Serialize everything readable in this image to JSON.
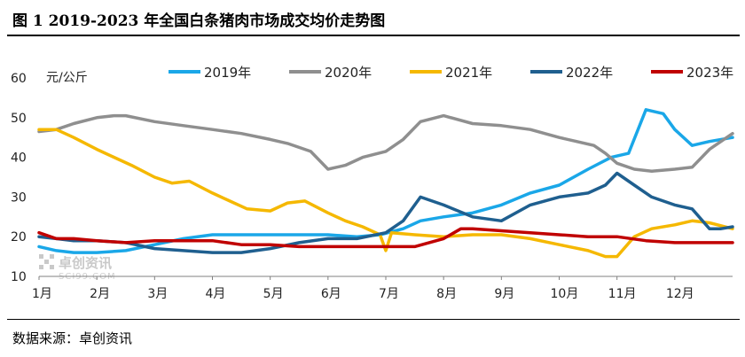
{
  "figure": {
    "title": "图 1 2019-2023 年全国白条猪肉市场成交均价走势图",
    "source": "数据来源：卓创资讯",
    "watermark": {
      "name": "卓创资讯",
      "url": "SCI99.COM"
    }
  },
  "chart_data": {
    "type": "line",
    "title": "",
    "xlabel": "",
    "ylabel": "元/公斤",
    "ylim": [
      10,
      60
    ],
    "yticks": [
      10,
      20,
      30,
      40,
      50,
      60
    ],
    "xlim": [
      0,
      12
    ],
    "categories": [
      "1月",
      "2月",
      "3月",
      "4月",
      "5月",
      "6月",
      "7月",
      "8月",
      "9月",
      "10月",
      "11月",
      "12月"
    ],
    "grid": false,
    "legend_position": "top",
    "series": [
      {
        "name": "2019年",
        "color": "#1aa7e8",
        "x": [
          0,
          0.3,
          0.6,
          1.0,
          1.5,
          2.0,
          2.5,
          3.0,
          3.5,
          4.0,
          4.5,
          5.0,
          5.5,
          5.9,
          6.3,
          6.6,
          7.0,
          7.5,
          8.0,
          8.5,
          9.0,
          9.5,
          9.9,
          10.2,
          10.5,
          10.8,
          11.0,
          11.3,
          11.6,
          12.0
        ],
        "y": [
          17.5,
          16.5,
          16,
          16,
          16.5,
          18,
          19.5,
          20.5,
          20.5,
          20.5,
          20.5,
          20.5,
          20,
          20.5,
          22,
          24,
          25,
          26,
          28,
          31,
          33,
          37,
          40,
          41,
          52,
          51,
          47,
          43,
          44,
          45
        ]
      },
      {
        "name": "2020年",
        "color": "#8f8f8f",
        "x": [
          0,
          0.3,
          0.6,
          1.0,
          1.3,
          1.5,
          2.0,
          2.5,
          3.0,
          3.5,
          4.0,
          4.3,
          4.7,
          5.0,
          5.3,
          5.6,
          6.0,
          6.3,
          6.6,
          7.0,
          7.5,
          8.0,
          8.5,
          9.0,
          9.3,
          9.6,
          9.8,
          10.0,
          10.3,
          10.6,
          11.0,
          11.3,
          11.6,
          12.0
        ],
        "y": [
          46.5,
          47,
          48.5,
          50,
          50.5,
          50.5,
          49,
          48,
          47,
          46,
          44.5,
          43.5,
          41.5,
          37,
          38,
          40,
          41.5,
          44.5,
          49,
          50.5,
          48.5,
          48,
          47,
          45,
          44,
          43,
          41,
          38.5,
          37,
          36.5,
          37,
          37.5,
          42,
          46
        ]
      },
      {
        "name": "2021年",
        "color": "#f5b800",
        "x": [
          0,
          0.3,
          0.6,
          1.0,
          1.3,
          1.6,
          2.0,
          2.3,
          2.6,
          3.0,
          3.3,
          3.6,
          4.0,
          4.3,
          4.6,
          5.0,
          5.3,
          5.6,
          5.9,
          6.0,
          6.1,
          6.5,
          7.0,
          7.5,
          8.0,
          8.5,
          9.0,
          9.5,
          9.8,
          10.0,
          10.3,
          10.6,
          11.0,
          11.3,
          11.6,
          12.0
        ],
        "y": [
          47,
          47,
          45,
          42,
          40,
          38,
          35,
          33.5,
          34,
          31,
          29,
          27,
          26.5,
          28.5,
          29,
          26,
          24,
          22.5,
          20.5,
          16.5,
          21,
          20.5,
          20,
          20.5,
          20.5,
          19.5,
          18,
          16.5,
          15,
          15,
          20,
          22,
          23,
          24,
          23.5,
          22
        ]
      },
      {
        "name": "2022年",
        "color": "#1f5f8f",
        "x": [
          0,
          0.3,
          0.6,
          1.0,
          1.5,
          2.0,
          2.5,
          3.0,
          3.5,
          4.0,
          4.5,
          5.0,
          5.5,
          6.0,
          6.3,
          6.6,
          7.0,
          7.5,
          8.0,
          8.5,
          9.0,
          9.5,
          9.8,
          10.0,
          10.3,
          10.6,
          11.0,
          11.3,
          11.6,
          11.8,
          12.0
        ],
        "y": [
          20,
          19.5,
          19,
          19,
          18.5,
          17,
          16.5,
          16,
          16,
          17,
          18.5,
          19.5,
          19.5,
          21,
          24,
          30,
          28,
          25,
          24,
          28,
          30,
          31,
          33,
          36,
          33,
          30,
          28,
          27,
          22,
          22,
          22.5
        ]
      },
      {
        "name": "2023年",
        "color": "#c00000",
        "x": [
          0,
          0.3,
          0.6,
          1.0,
          1.5,
          2.0,
          2.5,
          3.0,
          3.5,
          4.0,
          4.5,
          5.0,
          5.5,
          6.0,
          6.5,
          7.0,
          7.3,
          7.5,
          8.0,
          8.5,
          9.0,
          9.5,
          10.0,
          10.5,
          11.0,
          11.5,
          12.0
        ],
        "y": [
          21,
          19.5,
          19.5,
          19,
          18.5,
          19,
          19,
          19,
          18,
          18,
          17.5,
          17.5,
          17.5,
          17.5,
          17.5,
          19.5,
          22,
          22,
          21.5,
          21,
          20.5,
          20,
          20,
          19,
          18.5,
          18.5,
          18.5
        ]
      }
    ]
  }
}
